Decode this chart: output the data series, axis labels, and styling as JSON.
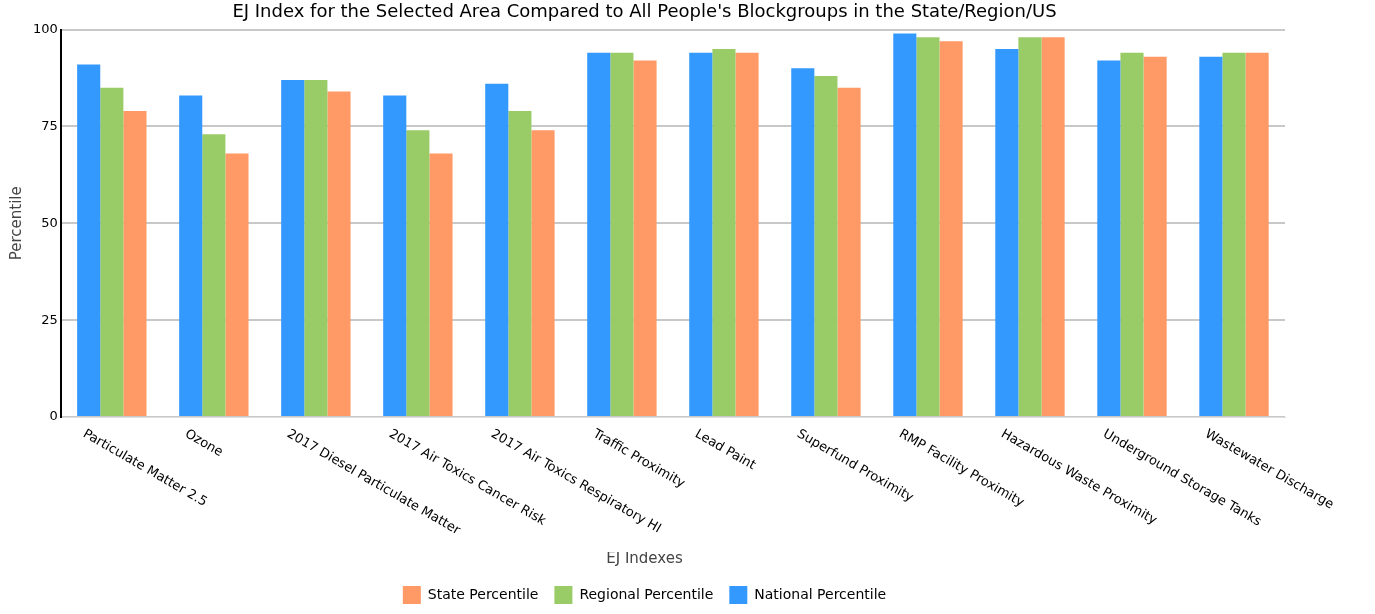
{
  "chart_data": {
    "type": "bar",
    "title": "EJ Index for the Selected Area Compared to All People's Blockgroups in the State/Region/US",
    "categories": [
      "Particulate Matter 2.5",
      "Ozone",
      "2017 Diesel Particulate Matter",
      "2017 Air Toxics Cancer Risk",
      "2017 Air Toxics Respiratory HI",
      "Traffic Proximity",
      "Lead Paint",
      "Superfund Proximity",
      "RMP Facility Proximity",
      "Hazardous Waste Proximity",
      "Underground Storage Tanks",
      "Wastewater Discharge"
    ],
    "series": [
      {
        "name": "National Percentile",
        "color": "#3399ff",
        "values": [
          91,
          83,
          87,
          83,
          86,
          94,
          94,
          90,
          99,
          95,
          92,
          93
        ]
      },
      {
        "name": "Regional Percentile",
        "color": "#99cc66",
        "values": [
          85,
          73,
          87,
          74,
          79,
          94,
          95,
          88,
          98,
          98,
          94,
          94
        ]
      },
      {
        "name": "State Percentile",
        "color": "#ff9966",
        "values": [
          79,
          68,
          84,
          68,
          74,
          92,
          94,
          85,
          97,
          98,
          93,
          94
        ]
      }
    ],
    "ylabel": "Percentile",
    "legend_title": "EJ Indexes",
    "ylim": [
      0,
      100
    ],
    "yticks": [
      0,
      25,
      50,
      75,
      100
    ],
    "grid": "y",
    "legend": "bottom"
  }
}
